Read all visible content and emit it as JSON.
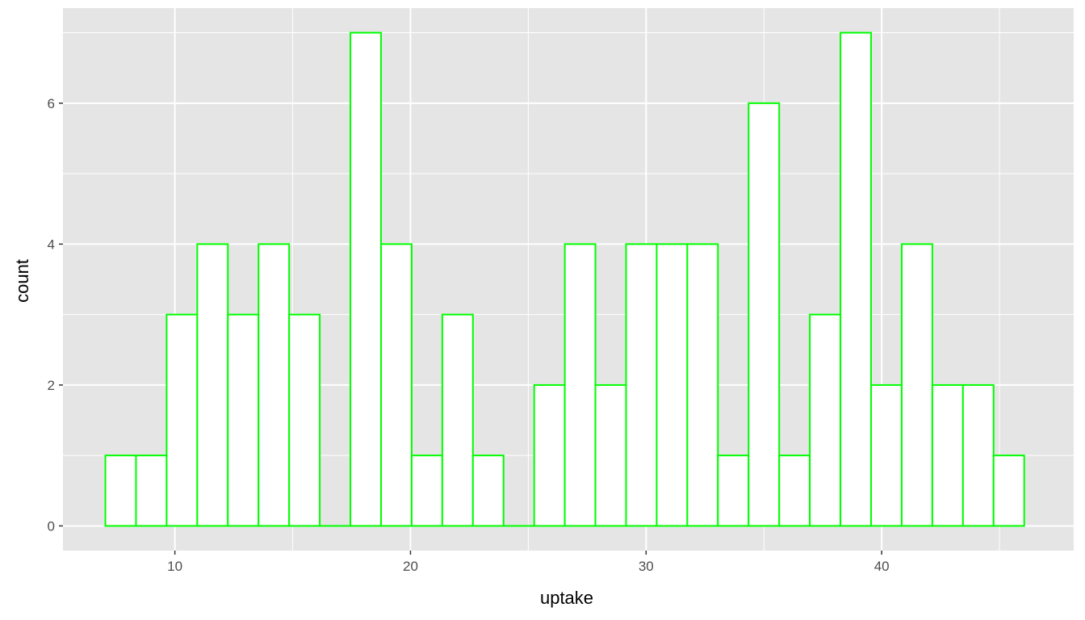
{
  "chart_data": {
    "type": "bar",
    "subtype": "histogram",
    "xlabel": "uptake",
    "ylabel": "count",
    "xlim": [
      5.25,
      48.15
    ],
    "ylim": [
      -0.35,
      7.35
    ],
    "x_ticks": [
      10,
      20,
      30,
      40
    ],
    "x_minor_ticks": [
      15,
      25,
      35,
      45
    ],
    "y_ticks": [
      0,
      2,
      4,
      6
    ],
    "y_minor_ticks": [
      1,
      3,
      5,
      7
    ],
    "bin_start": 7.05,
    "bin_width": 1.3,
    "values": [
      1,
      1,
      3,
      4,
      3,
      4,
      3,
      0,
      7,
      4,
      1,
      3,
      1,
      0,
      2,
      4,
      2,
      4,
      4,
      4,
      1,
      6,
      1,
      3,
      7,
      2,
      4,
      2,
      2,
      1
    ],
    "grid": true,
    "legend": "none",
    "colors": {
      "panel": "#e5e5e5",
      "grid": "#ffffff",
      "bar_fill": "#ffffff",
      "bar_outline": "#00ff00"
    }
  }
}
